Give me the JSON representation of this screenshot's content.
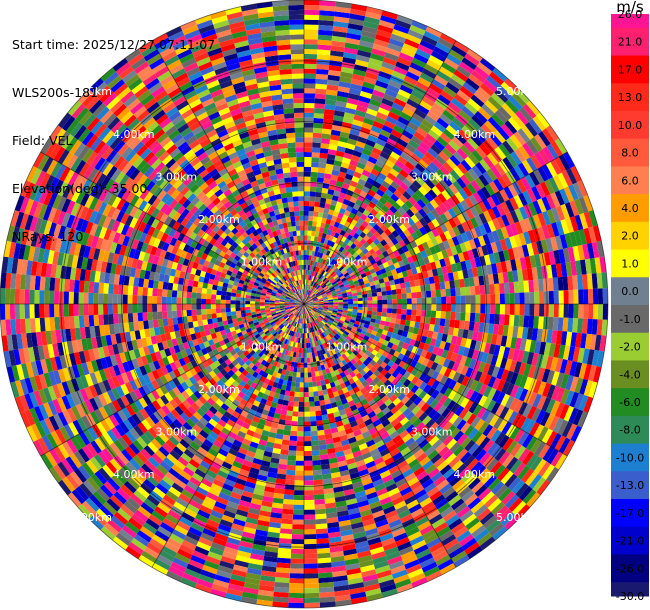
{
  "header": {
    "start_time": "Start time: 2025/12/27 07:11:07",
    "instrument": "WLS200s-181",
    "field": "Field: VEL",
    "elevation": "Elevation(deg): 35.00",
    "nrays": "NRays: 120"
  },
  "chart_data": {
    "type": "heatmap",
    "projection": "polar",
    "field": "VEL",
    "n_rays": 120,
    "range_rings_labels": [
      "1.00km",
      "2.00km",
      "3.00km",
      "4.00km",
      "5.00km"
    ],
    "colorbar": {
      "unit": "m/s",
      "ticks": [
        "26.0",
        "21.0",
        "17.0",
        "13.0",
        "10.0",
        "8.0",
        "6.0",
        "4.0",
        "2.0",
        "1.0",
        "0.0",
        "-1.0",
        "-2.0",
        "-4.0",
        "-6.0",
        "-8.0",
        "-10.0",
        "-13.0",
        "-17.0",
        "-21.0",
        "-26.0",
        "-30.0"
      ],
      "colors": [
        "#ff1493",
        "#ff2070",
        "#ff0000",
        "#ff2a1a",
        "#ff3b30",
        "#ff5a3c",
        "#ff7f50",
        "#ff9d00",
        "#ffd200",
        "#ffff00",
        "#708090",
        "#696969",
        "#9acd32",
        "#6b8e23",
        "#228b22",
        "#2e8b57",
        "#1e7fd0",
        "#3a5fcd",
        "#0000ff",
        "#0000cd",
        "#000080",
        "#191970"
      ]
    }
  }
}
